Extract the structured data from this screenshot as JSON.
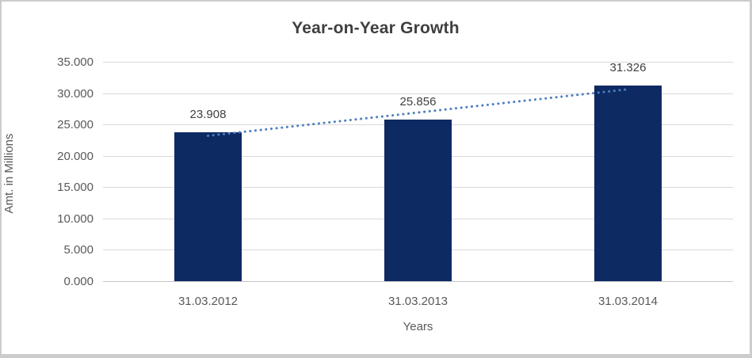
{
  "chart_data": {
    "type": "bar",
    "title": "Year-on-Year Growth",
    "xlabel": "Years",
    "ylabel": "Amt. in Millions",
    "categories": [
      "31.03.2012",
      "31.03.2013",
      "31.03.2014"
    ],
    "values": [
      23.908,
      25.856,
      31.326
    ],
    "data_labels": [
      "23.908",
      "25.856",
      "31.326"
    ],
    "y_ticks": [
      "0.000",
      "5.000",
      "10.000",
      "15.000",
      "20.000",
      "25.000",
      "30.000",
      "35.000"
    ],
    "ylim": [
      0,
      35
    ],
    "y_step": 5,
    "grid": true,
    "legend_position": "none",
    "colors": {
      "bar": "#0d2a63",
      "trendline": "#4e7fc0",
      "gridline": "#d9d9d9",
      "axis_line": "#c6c6c6",
      "title_text": "#3f3f3f",
      "tick_text": "#595959",
      "label_text": "#404040",
      "background": "#ffffff",
      "frame_border": "#cccccc"
    },
    "trendline": {
      "type": "linear",
      "style": "round-dot"
    }
  }
}
